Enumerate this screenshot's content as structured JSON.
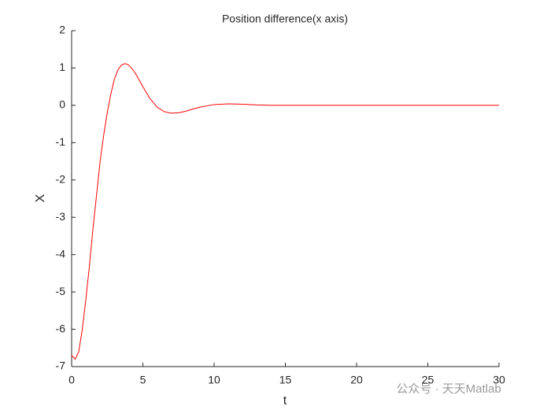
{
  "chart_data": {
    "type": "line",
    "title": "Position difference(x axis)",
    "x_label": "t",
    "y_label": "X",
    "x": [
      0,
      0.25,
      0.5,
      0.75,
      1,
      1.25,
      1.5,
      1.75,
      2,
      2.25,
      2.5,
      2.75,
      3,
      3.25,
      3.5,
      3.75,
      4,
      4.25,
      4.5,
      5,
      5.5,
      6,
      6.5,
      7,
      7.5,
      8,
      8.5,
      9,
      10,
      11,
      12,
      13,
      14,
      15,
      20,
      25,
      30
    ],
    "series": [
      {
        "color": "#ff0000",
        "values": [
          -6.7,
          -6.8,
          -6.6,
          -6.0,
          -5.2,
          -4.3,
          -3.3,
          -2.4,
          -1.5,
          -0.8,
          -0.2,
          0.3,
          0.7,
          0.95,
          1.08,
          1.12,
          1.08,
          0.98,
          0.84,
          0.5,
          0.18,
          -0.05,
          -0.17,
          -0.21,
          -0.2,
          -0.16,
          -0.1,
          -0.05,
          0.02,
          0.04,
          0.03,
          0.01,
          0,
          0,
          0,
          0,
          0
        ]
      }
    ],
    "xlim": [
      0,
      30
    ],
    "xticks": [
      0,
      5,
      10,
      15,
      20,
      25,
      30
    ],
    "ylim": [
      -7,
      2
    ],
    "yticks": [
      -7,
      -6,
      -5,
      -4,
      -3,
      -2,
      -1,
      0,
      1,
      2
    ],
    "grid": false,
    "watermark": "公众号 · 天天Matlab"
  }
}
